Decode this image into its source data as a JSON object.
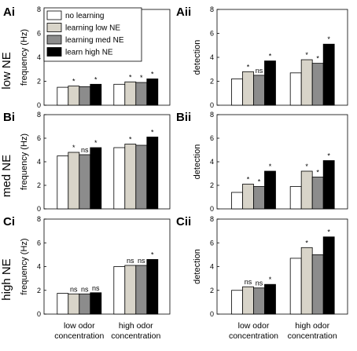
{
  "legend": [
    {
      "label": "no learning",
      "color": "#ffffff"
    },
    {
      "label": "learning low NE",
      "color": "#d8d4c9"
    },
    {
      "label": "learning med NE",
      "color": "#8c8c8c"
    },
    {
      "label": "learn high NE",
      "color": "#000000"
    }
  ],
  "row_labels": [
    "low NE",
    "med NE",
    "high NE"
  ],
  "category_line1": [
    "low odor",
    "high odor"
  ],
  "category_line2": [
    "concentration",
    "concentration"
  ],
  "chart_data": [
    {
      "id": "Ai",
      "type": "bar",
      "panel_label": "Ai",
      "ylabel": "frequency (Hz)",
      "ylim": [
        0,
        8
      ],
      "yticks": [
        0,
        2,
        4,
        6,
        8
      ],
      "categories": [
        "low odor concentration",
        "high odor concentration"
      ],
      "series": [
        {
          "name": "no learning",
          "values": [
            1.5,
            1.75
          ]
        },
        {
          "name": "learning low NE",
          "values": [
            1.6,
            1.95
          ]
        },
        {
          "name": "learning med NE",
          "values": [
            1.55,
            1.9
          ]
        },
        {
          "name": "learn high NE",
          "values": [
            1.75,
            2.2
          ]
        }
      ],
      "significance": [
        [
          "",
          "*",
          "",
          "*"
        ],
        [
          "",
          "*",
          "*",
          "*"
        ]
      ]
    },
    {
      "id": "Aii",
      "type": "bar",
      "panel_label": "Aii",
      "ylabel": "detection",
      "ylim": [
        0,
        8
      ],
      "yticks": [
        0,
        2,
        4,
        6,
        8
      ],
      "categories": [
        "low odor concentration",
        "high odor concentration"
      ],
      "series": [
        {
          "name": "no learning",
          "values": [
            2.2,
            2.7
          ]
        },
        {
          "name": "learning low NE",
          "values": [
            2.8,
            3.8
          ]
        },
        {
          "name": "learning med NE",
          "values": [
            2.5,
            3.5
          ]
        },
        {
          "name": "learn high NE",
          "values": [
            3.7,
            5.1
          ]
        }
      ],
      "significance": [
        [
          "",
          "*",
          "ns",
          "*"
        ],
        [
          "",
          "*",
          "*",
          "*"
        ]
      ]
    },
    {
      "id": "Bi",
      "type": "bar",
      "panel_label": "Bi",
      "ylabel": "frequency (Hz)",
      "ylim": [
        0,
        8
      ],
      "yticks": [
        0,
        2,
        4,
        6,
        8
      ],
      "categories": [
        "low odor concentration",
        "high odor concentration"
      ],
      "series": [
        {
          "name": "no learning",
          "values": [
            4.5,
            5.2
          ]
        },
        {
          "name": "learning low NE",
          "values": [
            4.8,
            5.5
          ]
        },
        {
          "name": "learning med NE",
          "values": [
            4.6,
            5.4
          ]
        },
        {
          "name": "learn high NE",
          "values": [
            5.2,
            6.1
          ]
        }
      ],
      "significance": [
        [
          "",
          "*",
          "ns",
          "*"
        ],
        [
          "",
          "*",
          "",
          "*"
        ]
      ]
    },
    {
      "id": "Bii",
      "type": "bar",
      "panel_label": "Bii",
      "ylabel": "detection",
      "ylim": [
        0,
        8
      ],
      "yticks": [
        0,
        2,
        4,
        6,
        8
      ],
      "categories": [
        "low odor concentration",
        "high odor concentration"
      ],
      "series": [
        {
          "name": "no learning",
          "values": [
            1.4,
            1.9
          ]
        },
        {
          "name": "learning low NE",
          "values": [
            2.1,
            3.2
          ]
        },
        {
          "name": "learning med NE",
          "values": [
            1.9,
            2.7
          ]
        },
        {
          "name": "learn high NE",
          "values": [
            3.2,
            4.1
          ]
        }
      ],
      "significance": [
        [
          "",
          "*",
          "*",
          "*"
        ],
        [
          "",
          "*",
          "*",
          "*"
        ]
      ]
    },
    {
      "id": "Ci",
      "type": "bar",
      "panel_label": "Ci",
      "ylabel": "frequency (Hz)",
      "ylim": [
        0,
        8
      ],
      "yticks": [
        0,
        2,
        4,
        6,
        8
      ],
      "categories": [
        "low odor concentration",
        "high odor concentration"
      ],
      "series": [
        {
          "name": "no learning",
          "values": [
            1.75,
            4.0
          ]
        },
        {
          "name": "learning low NE",
          "values": [
            1.7,
            4.1
          ]
        },
        {
          "name": "learning med NE",
          "values": [
            1.7,
            4.1
          ]
        },
        {
          "name": "learn high NE",
          "values": [
            1.8,
            4.6
          ]
        }
      ],
      "significance": [
        [
          "",
          "ns",
          "ns",
          "ns"
        ],
        [
          "",
          "ns",
          "ns",
          "*"
        ]
      ]
    },
    {
      "id": "Cii",
      "type": "bar",
      "panel_label": "Cii",
      "ylabel": "detection",
      "ylim": [
        0,
        8
      ],
      "yticks": [
        0,
        2,
        4,
        6,
        8
      ],
      "categories": [
        "low odor concentration",
        "high odor concentration"
      ],
      "series": [
        {
          "name": "no learning",
          "values": [
            2.0,
            4.7
          ]
        },
        {
          "name": "learning low NE",
          "values": [
            2.3,
            5.6
          ]
        },
        {
          "name": "learning med NE",
          "values": [
            2.2,
            5.0
          ]
        },
        {
          "name": "learn high NE",
          "values": [
            2.5,
            6.5
          ]
        }
      ],
      "significance": [
        [
          "",
          "ns",
          "ns",
          "*"
        ],
        [
          "",
          "*",
          "",
          "*"
        ]
      ]
    }
  ]
}
